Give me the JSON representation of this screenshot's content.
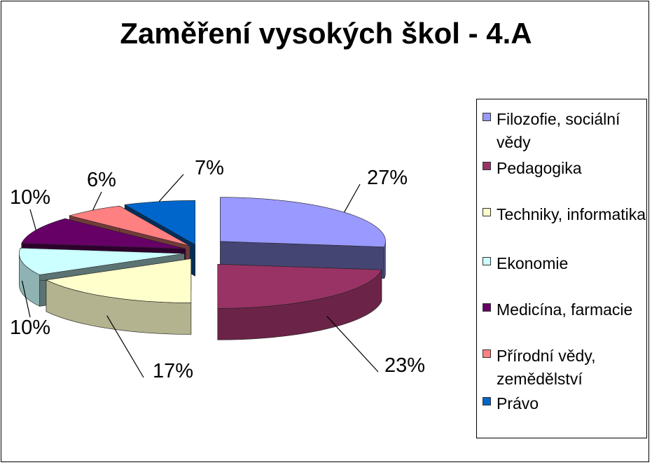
{
  "chart_data": {
    "type": "pie",
    "title": "Zaměření vysokých škol - 4.A",
    "categories": [
      "Filozofie, sociální vědy",
      "Pedagogika",
      "Techniky, informatika",
      "Ekonomie",
      "Medicína, farmacie",
      "Přírodní vědy, zemědělství",
      "Právo"
    ],
    "values": [
      27,
      23,
      17,
      10,
      10,
      6,
      7
    ],
    "labels": [
      "27%",
      "23%",
      "17%",
      "10%",
      "10%",
      "6%",
      "7%"
    ],
    "colors": [
      "#9999ff",
      "#993366",
      "#ffffcc",
      "#ccffff",
      "#660066",
      "#ff8080",
      "#0066cc"
    ],
    "exploded": true,
    "three_d": true,
    "legend_position": "right"
  }
}
